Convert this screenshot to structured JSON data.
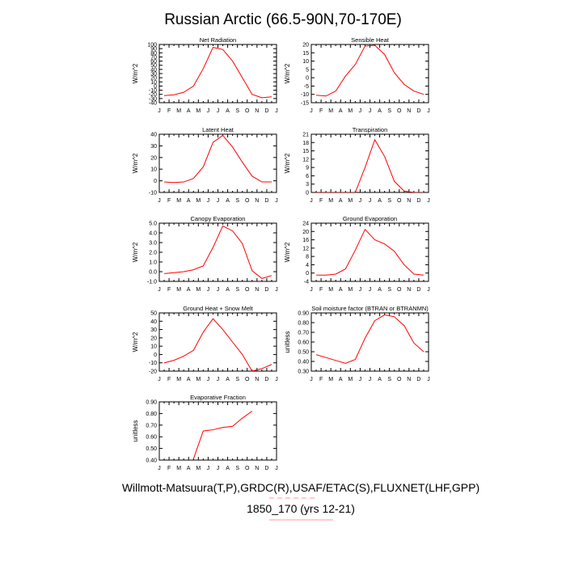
{
  "figure": {
    "title": "Russian Arctic (66.5-90N,70-170E)",
    "footer_line1": "Willmott-Matsuura(T,P),GRDC(R),USAF/ETAC(S),FLUXNET(LHF,GPP)",
    "footer_line2": "1850_170 (yrs 12-21)",
    "colors": {
      "series": "#ff0000",
      "axis": "#000000",
      "footer_underline": "#ff9999"
    }
  },
  "chart_data": [
    {
      "type": "line",
      "title": "Net Radiation",
      "ylabel": "W/m^2",
      "categories": [
        "J",
        "F",
        "M",
        "A",
        "M",
        "J",
        "J",
        "A",
        "S",
        "O",
        "N",
        "D",
        "J"
      ],
      "ylim": [
        -40,
        100
      ],
      "yticks": [
        -40,
        -30,
        -20,
        -10,
        0,
        10,
        20,
        30,
        40,
        50,
        60,
        70,
        80,
        90,
        100
      ],
      "ytick_labels": [
        "-40",
        "-30",
        "-20",
        "-10",
        "0",
        "10",
        "20",
        "30",
        "40",
        "50",
        "60",
        "70",
        "80",
        "90",
        "100"
      ],
      "x": [
        0.5,
        1.5,
        2.5,
        3.5,
        4.5,
        5.5,
        6.5,
        7.5,
        8.5,
        9.5,
        10.5,
        11.5
      ],
      "values": [
        -23,
        -21,
        -15,
        0,
        42,
        93,
        88,
        60,
        20,
        -20,
        -28,
        -26
      ]
    },
    {
      "type": "line",
      "title": "Sensible Heat",
      "ylabel": "W/m^2",
      "categories": [
        "J",
        "F",
        "M",
        "A",
        "M",
        "J",
        "J",
        "A",
        "S",
        "O",
        "N",
        "D",
        "J"
      ],
      "ylim": [
        -15,
        20
      ],
      "yticks": [
        -15,
        -10,
        -5,
        0,
        5,
        10,
        15,
        20
      ],
      "ytick_labels": [
        "-15",
        "-10",
        "-5",
        "0",
        "5",
        "10",
        "15",
        "20"
      ],
      "x": [
        0.5,
        1.5,
        2.5,
        3.5,
        4.5,
        5.5,
        6.5,
        7.5,
        8.5,
        9.5,
        10.5,
        11.5
      ],
      "values": [
        -10.5,
        -11,
        -8,
        1,
        8,
        19,
        19.5,
        14,
        3,
        -4,
        -8,
        -10
      ]
    },
    {
      "type": "line",
      "title": "Latent Heat",
      "ylabel": "W/m^2",
      "categories": [
        "J",
        "F",
        "M",
        "A",
        "M",
        "J",
        "J",
        "A",
        "S",
        "O",
        "N",
        "D",
        "J"
      ],
      "ylim": [
        -10,
        40
      ],
      "yticks": [
        -10,
        0,
        10,
        20,
        30,
        40
      ],
      "ytick_labels": [
        "-10",
        "0",
        "10",
        "20",
        "30",
        "40"
      ],
      "x": [
        0.5,
        1.5,
        2.5,
        3.5,
        4.5,
        5.5,
        6.5,
        7.5,
        8.5,
        9.5,
        10.5,
        11.5
      ],
      "values": [
        -1,
        -1.5,
        -1,
        2,
        12,
        33,
        39,
        29,
        16,
        4,
        -1,
        -1
      ]
    },
    {
      "type": "line",
      "title": "Transpiration",
      "ylabel": "W/m^2",
      "categories": [
        "J",
        "F",
        "M",
        "A",
        "M",
        "J",
        "J",
        "A",
        "S",
        "O",
        "N",
        "D",
        "J"
      ],
      "ylim": [
        0,
        21
      ],
      "yticks": [
        0,
        3,
        6,
        9,
        12,
        15,
        18,
        21
      ],
      "ytick_labels": [
        "0",
        "3",
        "6",
        "9",
        "12",
        "15",
        "18",
        "21"
      ],
      "x": [
        0.5,
        1.5,
        2.5,
        3.5,
        4.5,
        5.5,
        6.5,
        7.5,
        8.5,
        9.5,
        10.5,
        11.5
      ],
      "values": [
        0,
        0,
        0,
        0,
        0,
        9,
        19,
        13,
        4,
        0.5,
        0,
        0
      ]
    },
    {
      "type": "line",
      "title": "Canopy Evaporation",
      "ylabel": "W/m^2",
      "categories": [
        "J",
        "F",
        "M",
        "A",
        "M",
        "J",
        "J",
        "A",
        "S",
        "O",
        "N",
        "D",
        "J"
      ],
      "ylim": [
        -1.0,
        5.0
      ],
      "yticks": [
        -1,
        0,
        1,
        2,
        3,
        4,
        5
      ],
      "ytick_labels": [
        "-1.0",
        "0.0",
        "1.0",
        "2.0",
        "3.0",
        "4.0",
        "5.0"
      ],
      "x": [
        0.5,
        1.5,
        2.5,
        3.5,
        4.5,
        5.5,
        6.5,
        7.5,
        8.5,
        9.5,
        10.5,
        11.5
      ],
      "values": [
        -0.2,
        -0.1,
        0,
        0.2,
        0.6,
        2.5,
        4.7,
        4.2,
        2.9,
        0.1,
        -0.7,
        -0.4
      ]
    },
    {
      "type": "line",
      "title": "Ground Evaporation",
      "ylabel": "W/m^2",
      "categories": [
        "J",
        "F",
        "M",
        "A",
        "M",
        "J",
        "J",
        "A",
        "S",
        "O",
        "N",
        "D",
        "J"
      ],
      "ylim": [
        -4,
        24
      ],
      "yticks": [
        -4,
        0,
        4,
        8,
        12,
        16,
        20,
        24
      ],
      "ytick_labels": [
        "-4",
        "0",
        "4",
        "8",
        "12",
        "16",
        "20",
        "24"
      ],
      "x": [
        0.5,
        1.5,
        2.5,
        3.5,
        4.5,
        5.5,
        6.5,
        7.5,
        8.5,
        9.5,
        10.5,
        11.5
      ],
      "values": [
        -1,
        -1,
        -0.5,
        2,
        11,
        21,
        16,
        14,
        10.5,
        4,
        -0.5,
        -1
      ]
    },
    {
      "type": "line",
      "title": "Ground Heat + Snow Melt",
      "ylabel": "W/m^2",
      "categories": [
        "J",
        "F",
        "M",
        "A",
        "M",
        "J",
        "J",
        "A",
        "S",
        "O",
        "N",
        "D",
        "J"
      ],
      "ylim": [
        -20,
        50
      ],
      "yticks": [
        -20,
        -10,
        0,
        10,
        20,
        30,
        40,
        50
      ],
      "ytick_labels": [
        "-20",
        "-10",
        "0",
        "10",
        "20",
        "30",
        "40",
        "50"
      ],
      "x": [
        0.5,
        1.5,
        2.5,
        3.5,
        4.5,
        5.5,
        6.5,
        7.5,
        8.5,
        9.5,
        10.5,
        11.5
      ],
      "values": [
        -10,
        -7,
        -2,
        5,
        27,
        43,
        30,
        15,
        0,
        -20,
        -17,
        -12
      ]
    },
    {
      "type": "line",
      "title": "Soil moisture factor (BTRAN or BTRANMN)",
      "ylabel": "unitless",
      "categories": [
        "J",
        "F",
        "M",
        "A",
        "M",
        "J",
        "J",
        "A",
        "S",
        "O",
        "N",
        "D",
        "J"
      ],
      "ylim": [
        0.3,
        0.9
      ],
      "yticks": [
        0.3,
        0.4,
        0.5,
        0.6,
        0.7,
        0.8,
        0.9
      ],
      "ytick_labels": [
        "0.30",
        "0.40",
        "0.50",
        "0.60",
        "0.70",
        "0.80",
        "0.90"
      ],
      "x": [
        0.5,
        1.5,
        2.5,
        3.5,
        4.5,
        5.5,
        6.5,
        7.5,
        8.5,
        9.5,
        10.5,
        11.5
      ],
      "values": [
        0.47,
        0.44,
        0.41,
        0.38,
        0.42,
        0.64,
        0.82,
        0.88,
        0.86,
        0.77,
        0.59,
        0.5
      ]
    },
    {
      "type": "line",
      "title": "Evaporative Fraction",
      "ylabel": "unitless",
      "categories": [
        "J",
        "F",
        "M",
        "A",
        "M",
        "J",
        "J",
        "A",
        "S",
        "O",
        "N",
        "D",
        "J"
      ],
      "ylim": [
        0.4,
        0.9
      ],
      "yticks": [
        0.4,
        0.5,
        0.6,
        0.7,
        0.8,
        0.9
      ],
      "ytick_labels": [
        "0.40",
        "0.50",
        "0.60",
        "0.70",
        "0.80",
        "0.90"
      ],
      "x": [
        3.5,
        4.5,
        5.5,
        6.5,
        7.5,
        8.5,
        9.5
      ],
      "values": [
        0.41,
        0.65,
        0.66,
        0.68,
        0.69,
        0.76,
        0.82
      ]
    }
  ]
}
